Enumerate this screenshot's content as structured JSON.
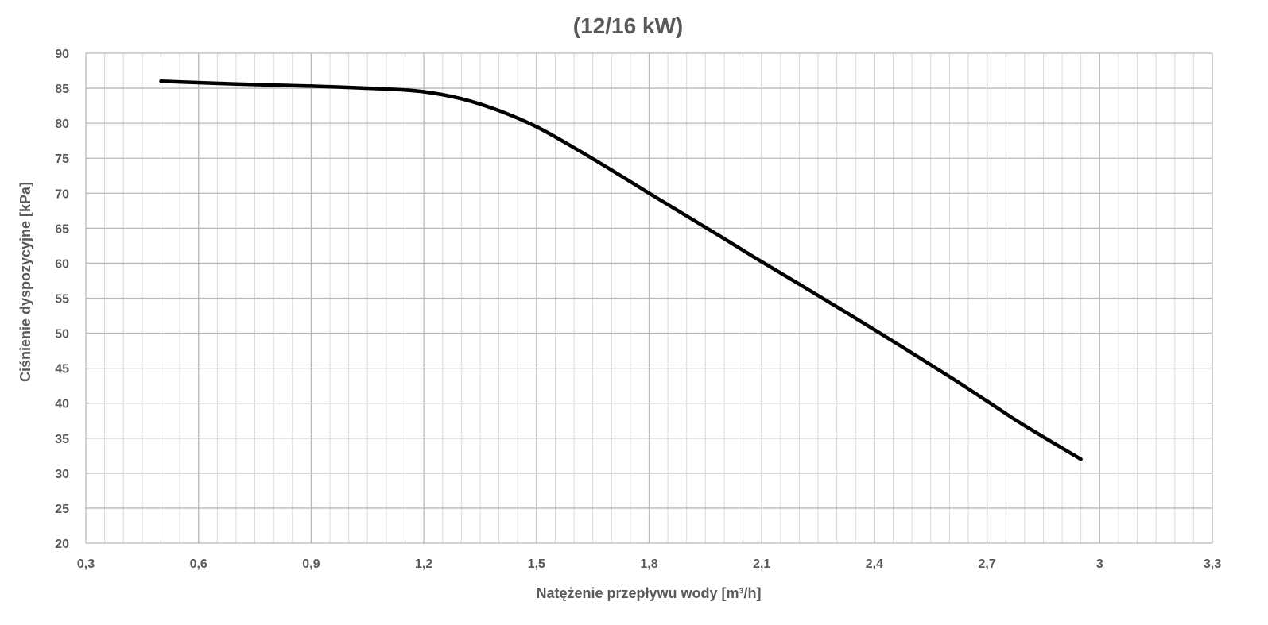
{
  "chart_data": {
    "type": "line",
    "title": "(12/16 kW)",
    "xlabel": "Natężenie przepływu wody [m³/h]",
    "ylabel": "Ciśnienie dyspozycyjne [kPa]",
    "xlim": [
      0.3,
      3.3
    ],
    "ylim": [
      20,
      90
    ],
    "x_ticks": [
      0.3,
      0.6,
      0.9,
      1.2,
      1.5,
      1.8,
      2.1,
      2.4,
      2.7,
      3.0,
      3.3
    ],
    "x_tick_labels": [
      "0,3",
      "0,6",
      "0,9",
      "1,2",
      "1,5",
      "1,8",
      "2,1",
      "2,4",
      "2,7",
      "3",
      "3,3"
    ],
    "y_ticks": [
      20,
      25,
      30,
      35,
      40,
      45,
      50,
      55,
      60,
      65,
      70,
      75,
      80,
      85,
      90
    ],
    "y_tick_labels": [
      "20",
      "25",
      "30",
      "35",
      "40",
      "45",
      "50",
      "55",
      "60",
      "65",
      "70",
      "75",
      "80",
      "85",
      "90"
    ],
    "grid": true,
    "legend": "none",
    "series": [
      {
        "color": "#000000",
        "points": [
          [
            0.5,
            86.0
          ],
          [
            0.7,
            85.6
          ],
          [
            0.9,
            85.3
          ],
          [
            1.1,
            84.9
          ],
          [
            1.2,
            84.5
          ],
          [
            1.3,
            83.5
          ],
          [
            1.4,
            81.8
          ],
          [
            1.5,
            79.5
          ],
          [
            1.6,
            76.5
          ],
          [
            1.7,
            73.3
          ],
          [
            1.8,
            70.0
          ],
          [
            2.0,
            63.5
          ],
          [
            2.1,
            60.2
          ],
          [
            2.2,
            57.0
          ],
          [
            2.4,
            50.5
          ],
          [
            2.6,
            43.8
          ],
          [
            2.7,
            40.3
          ],
          [
            2.8,
            36.8
          ],
          [
            2.95,
            32.0
          ]
        ]
      }
    ],
    "colors": {
      "major_grid": "#b9b9b9",
      "minor_grid": "#d9d9d9",
      "text": "#595959",
      "line": "#000000"
    }
  }
}
